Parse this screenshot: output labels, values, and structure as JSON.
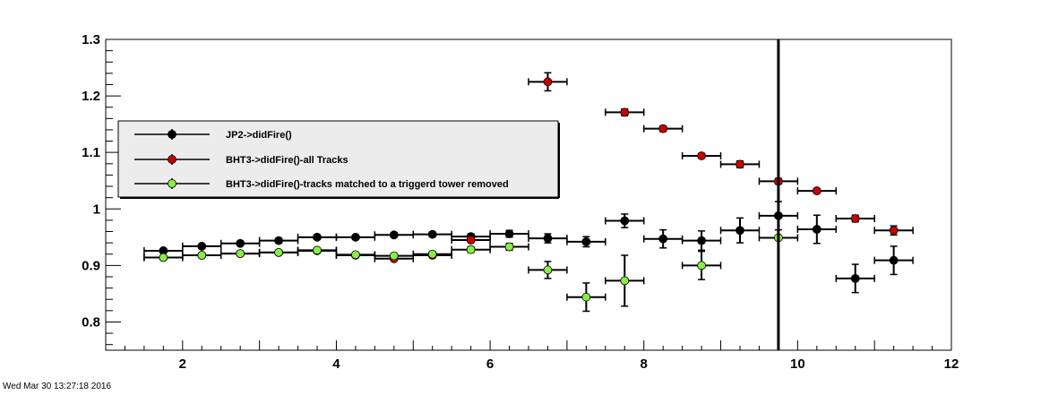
{
  "footer": {
    "timestamp": "Wed Mar 30 13:27:18 2016"
  },
  "chart_data": {
    "type": "scatter",
    "title": "",
    "xlabel": "",
    "ylabel": "",
    "xlim": [
      1,
      12
    ],
    "ylim": [
      0.75,
      1.3
    ],
    "x_ticks": [
      "2",
      "4",
      "6",
      "8",
      "10",
      "12"
    ],
    "y_ticks": [
      "0.8",
      "0.9",
      "1",
      "1.1",
      "1.2",
      "1.3"
    ],
    "grid": false,
    "legend": {
      "placement": "top-left",
      "entries": [
        {
          "label": "JP2->didFire()",
          "color": "#000000"
        },
        {
          "label": "BHT3->didFire()-all Tracks",
          "color": "#cc0000"
        },
        {
          "label": "BHT3->didFire()-tracks matched to a triggerd tower removed",
          "color": "#88ee44"
        }
      ]
    },
    "series": [
      {
        "name": "JP2->didFire()",
        "color": "#000000",
        "points": [
          {
            "x": 1.75,
            "y": 0.926,
            "ex": 0.25,
            "ey": 0.003
          },
          {
            "x": 2.25,
            "y": 0.934,
            "ex": 0.25,
            "ey": 0.003
          },
          {
            "x": 2.75,
            "y": 0.939,
            "ex": 0.25,
            "ey": 0.003
          },
          {
            "x": 3.25,
            "y": 0.944,
            "ex": 0.25,
            "ey": 0.003
          },
          {
            "x": 3.75,
            "y": 0.95,
            "ex": 0.25,
            "ey": 0.003
          },
          {
            "x": 4.25,
            "y": 0.95,
            "ex": 0.25,
            "ey": 0.003
          },
          {
            "x": 4.75,
            "y": 0.954,
            "ex": 0.25,
            "ey": 0.004
          },
          {
            "x": 5.25,
            "y": 0.955,
            "ex": 0.25,
            "ey": 0.004
          },
          {
            "x": 5.75,
            "y": 0.951,
            "ex": 0.25,
            "ey": 0.005
          },
          {
            "x": 6.25,
            "y": 0.956,
            "ex": 0.25,
            "ey": 0.006
          },
          {
            "x": 6.75,
            "y": 0.948,
            "ex": 0.25,
            "ey": 0.008
          },
          {
            "x": 7.25,
            "y": 0.942,
            "ex": 0.25,
            "ey": 0.009
          },
          {
            "x": 7.75,
            "y": 0.979,
            "ex": 0.25,
            "ey": 0.012
          },
          {
            "x": 8.25,
            "y": 0.947,
            "ex": 0.25,
            "ey": 0.016
          },
          {
            "x": 8.75,
            "y": 0.944,
            "ex": 0.25,
            "ey": 0.017
          },
          {
            "x": 9.25,
            "y": 0.962,
            "ex": 0.25,
            "ey": 0.022
          },
          {
            "x": 9.75,
            "y": 0.988,
            "ex": 0.25,
            "ey": 0.025
          },
          {
            "x": 10.25,
            "y": 0.964,
            "ex": 0.25,
            "ey": 0.025
          },
          {
            "x": 10.75,
            "y": 0.877,
            "ex": 0.25,
            "ey": 0.025
          },
          {
            "x": 11.25,
            "y": 0.909,
            "ex": 0.25,
            "ey": 0.025
          }
        ]
      },
      {
        "name": "BHT3->didFire()-all Tracks",
        "color": "#cc0000",
        "points": [
          {
            "x": 1.75,
            "y": 0.914,
            "ex": 0.25,
            "ey": 0.003
          },
          {
            "x": 2.25,
            "y": 0.918,
            "ex": 0.25,
            "ey": 0.003
          },
          {
            "x": 2.75,
            "y": 0.921,
            "ex": 0.25,
            "ey": 0.003
          },
          {
            "x": 3.25,
            "y": 0.923,
            "ex": 0.25,
            "ey": 0.003
          },
          {
            "x": 3.75,
            "y": 0.926,
            "ex": 0.25,
            "ey": 0.003
          },
          {
            "x": 4.25,
            "y": 0.918,
            "ex": 0.25,
            "ey": 0.003
          },
          {
            "x": 4.75,
            "y": 0.912,
            "ex": 0.25,
            "ey": 0.003
          },
          {
            "x": 5.25,
            "y": 0.918,
            "ex": 0.25,
            "ey": 0.003
          },
          {
            "x": 5.75,
            "y": 0.945,
            "ex": 0.25,
            "ey": 0.004
          },
          {
            "x": 6.75,
            "y": 1.225,
            "ex": 0.25,
            "ey": 0.016
          },
          {
            "x": 7.75,
            "y": 1.171,
            "ex": 0.25,
            "ey": 0.006
          },
          {
            "x": 8.25,
            "y": 1.142,
            "ex": 0.25,
            "ey": 0.005
          },
          {
            "x": 8.75,
            "y": 1.094,
            "ex": 0.25,
            "ey": 0.004
          },
          {
            "x": 9.25,
            "y": 1.079,
            "ex": 0.25,
            "ey": 0.006
          },
          {
            "x": 9.75,
            "y": 1.049,
            "ex": 0.25,
            "ey": 0.005
          },
          {
            "x": 10.25,
            "y": 1.032,
            "ex": 0.25,
            "ey": 0.004
          },
          {
            "x": 10.75,
            "y": 0.983,
            "ex": 0.25,
            "ey": 0.006
          },
          {
            "x": 11.25,
            "y": 0.962,
            "ex": 0.25,
            "ey": 0.008
          }
        ]
      },
      {
        "name": "BHT3->didFire()-tracks matched to a triggerd tower removed",
        "color": "#88ee44",
        "points": [
          {
            "x": 1.75,
            "y": 0.914,
            "ex": 0.25,
            "ey": 0.003
          },
          {
            "x": 2.25,
            "y": 0.918,
            "ex": 0.25,
            "ey": 0.003
          },
          {
            "x": 2.75,
            "y": 0.921,
            "ex": 0.25,
            "ey": 0.003
          },
          {
            "x": 3.25,
            "y": 0.923,
            "ex": 0.25,
            "ey": 0.003
          },
          {
            "x": 3.75,
            "y": 0.927,
            "ex": 0.25,
            "ey": 0.003
          },
          {
            "x": 4.25,
            "y": 0.919,
            "ex": 0.25,
            "ey": 0.003
          },
          {
            "x": 4.75,
            "y": 0.917,
            "ex": 0.25,
            "ey": 0.003
          },
          {
            "x": 5.25,
            "y": 0.92,
            "ex": 0.25,
            "ey": 0.004
          },
          {
            "x": 5.75,
            "y": 0.928,
            "ex": 0.25,
            "ey": 0.005
          },
          {
            "x": 6.25,
            "y": 0.933,
            "ex": 0.25,
            "ey": 0.006
          },
          {
            "x": 6.75,
            "y": 0.892,
            "ex": 0.25,
            "ey": 0.015
          },
          {
            "x": 7.25,
            "y": 0.844,
            "ex": 0.25,
            "ey": 0.025
          },
          {
            "x": 7.75,
            "y": 0.873,
            "ex": 0.25,
            "ey": 0.045
          },
          {
            "x": 8.75,
            "y": 0.9,
            "ex": 0.25,
            "ey": 0.025
          },
          {
            "x": 9.75,
            "y": 0.949,
            "ex": 0.25,
            "ey": 0.0
          }
        ]
      }
    ],
    "vertical_line": {
      "x": 9.75
    }
  }
}
